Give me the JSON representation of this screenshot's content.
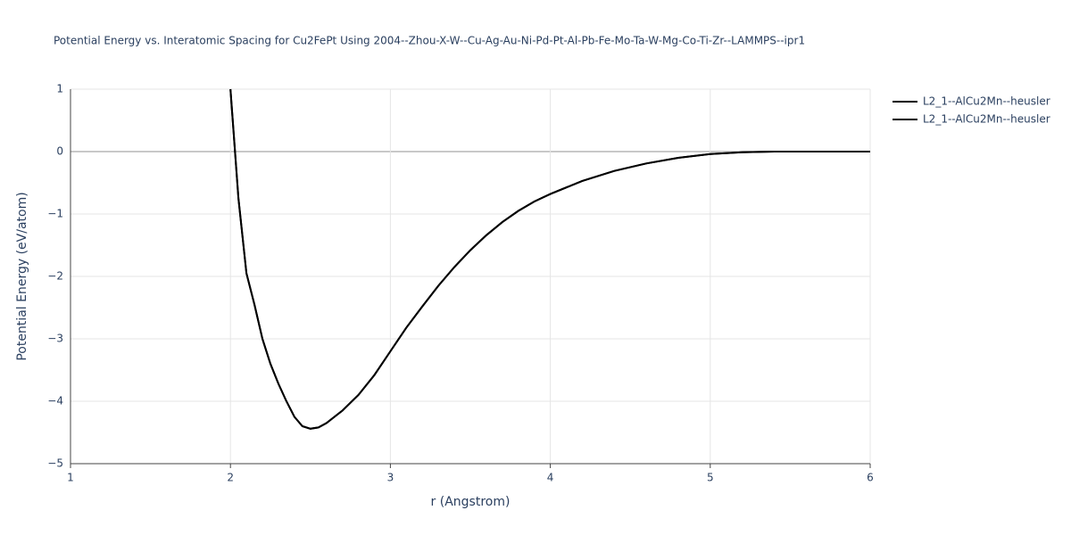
{
  "chart_data": {
    "type": "line",
    "title": "Potential Energy vs. Interatomic Spacing for Cu2FePt Using 2004--Zhou-X-W--Cu-Ag-Au-Ni-Pd-Pt-Al-Pb-Fe-Mo-Ta-W-Mg-Co-Ti-Zr--LAMMPS--ipr1",
    "x_label": "r (Angstrom)",
    "y_label": "Potential Energy (eV/atom)",
    "x": [
      2.0,
      2.05,
      2.1,
      2.15,
      2.2,
      2.25,
      2.3,
      2.35,
      2.4,
      2.45,
      2.5,
      2.55,
      2.6,
      2.7,
      2.8,
      2.9,
      3.0,
      3.1,
      3.2,
      3.3,
      3.4,
      3.5,
      3.6,
      3.7,
      3.8,
      3.9,
      4.0,
      4.2,
      4.4,
      4.6,
      4.8,
      5.0,
      5.2,
      5.4,
      6.0
    ],
    "series": [
      {
        "name": "L2_1--AlCu2Mn--heusler",
        "color": "#000000",
        "values": [
          1.0,
          -0.75,
          -1.95,
          -2.45,
          -3.0,
          -3.4,
          -3.72,
          -4.0,
          -4.25,
          -4.4,
          -4.44,
          -4.42,
          -4.35,
          -4.15,
          -3.9,
          -3.58,
          -3.2,
          -2.82,
          -2.48,
          -2.15,
          -1.85,
          -1.58,
          -1.34,
          -1.13,
          -0.95,
          -0.8,
          -0.68,
          -0.47,
          -0.31,
          -0.19,
          -0.1,
          -0.04,
          -0.01,
          0,
          0
        ]
      },
      {
        "name": "L2_1--AlCu2Mn--heusler",
        "color": "#000000",
        "values": [
          1.0,
          -0.75,
          -1.95,
          -2.45,
          -3.0,
          -3.4,
          -3.72,
          -4.0,
          -4.25,
          -4.4,
          -4.44,
          -4.42,
          -4.35,
          -4.15,
          -3.9,
          -3.58,
          -3.2,
          -2.82,
          -2.48,
          -2.15,
          -1.85,
          -1.58,
          -1.34,
          -1.13,
          -0.95,
          -0.8,
          -0.68,
          -0.47,
          -0.31,
          -0.19,
          -0.1,
          -0.04,
          -0.01,
          0,
          0
        ]
      }
    ],
    "xlim": [
      1,
      6
    ],
    "xticks": [
      1,
      2,
      3,
      4,
      5,
      6
    ],
    "ylim": [
      -5,
      1
    ],
    "yticks": [
      {
        "value": -5,
        "label": "−5"
      },
      {
        "value": -4,
        "label": "−4"
      },
      {
        "value": -3,
        "label": "−3"
      },
      {
        "value": -2,
        "label": "−2"
      },
      {
        "value": -1,
        "label": "−1"
      },
      0,
      1
    ],
    "grid": true
  }
}
